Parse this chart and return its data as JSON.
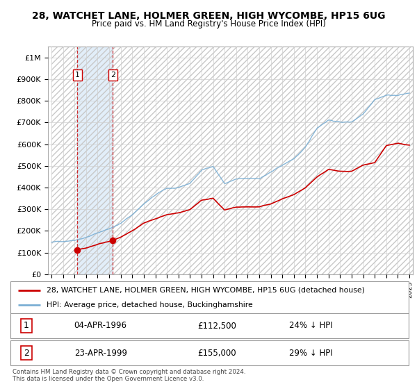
{
  "title": "28, WATCHET LANE, HOLMER GREEN, HIGH WYCOMBE, HP15 6UG",
  "subtitle": "Price paid vs. HM Land Registry's House Price Index (HPI)",
  "footer": "Contains HM Land Registry data © Crown copyright and database right 2024.\nThis data is licensed under the Open Government Licence v3.0.",
  "legend_line1": "28, WATCHET LANE, HOLMER GREEN, HIGH WYCOMBE, HP15 6UG (detached house)",
  "legend_line2": "HPI: Average price, detached house, Buckinghamshire",
  "sale1_label": "1",
  "sale1_date": "04-APR-1996",
  "sale1_price": "£112,500",
  "sale1_hpi": "24% ↓ HPI",
  "sale2_label": "2",
  "sale2_date": "23-APR-1999",
  "sale2_price": "£155,000",
  "sale2_hpi": "29% ↓ HPI",
  "price_color": "#cc0000",
  "hpi_color": "#7bafd4",
  "ylim": [
    0,
    1050000
  ],
  "yticks": [
    0,
    100000,
    200000,
    300000,
    400000,
    500000,
    600000,
    700000,
    800000,
    900000,
    1000000
  ],
  "ytick_labels": [
    "£0",
    "£100K",
    "£200K",
    "£300K",
    "£400K",
    "£500K",
    "£600K",
    "£700K",
    "£800K",
    "£900K",
    "£1M"
  ],
  "sale1_year": 1996.25,
  "sale1_value": 112500,
  "sale2_year": 1999.31,
  "sale2_value": 155000,
  "x_min": 1994,
  "x_max": 2025,
  "hpi_breakpoints": [
    [
      1994,
      148000
    ],
    [
      1995,
      152000
    ],
    [
      1996,
      160000
    ],
    [
      1997,
      175000
    ],
    [
      1998,
      195000
    ],
    [
      1999,
      215000
    ],
    [
      2000,
      240000
    ],
    [
      2001,
      280000
    ],
    [
      2002,
      330000
    ],
    [
      2003,
      370000
    ],
    [
      2004,
      400000
    ],
    [
      2005,
      400000
    ],
    [
      2006,
      420000
    ],
    [
      2007,
      480000
    ],
    [
      2008,
      500000
    ],
    [
      2009,
      420000
    ],
    [
      2010,
      440000
    ],
    [
      2011,
      440000
    ],
    [
      2012,
      440000
    ],
    [
      2013,
      470000
    ],
    [
      2014,
      500000
    ],
    [
      2015,
      530000
    ],
    [
      2016,
      580000
    ],
    [
      2017,
      670000
    ],
    [
      2018,
      710000
    ],
    [
      2019,
      700000
    ],
    [
      2020,
      700000
    ],
    [
      2021,
      740000
    ],
    [
      2022,
      810000
    ],
    [
      2023,
      830000
    ],
    [
      2024,
      830000
    ],
    [
      2025,
      840000
    ]
  ],
  "price_breakpoints_1": [
    [
      1996.25,
      112500
    ],
    [
      1997,
      120000
    ],
    [
      1998,
      138000
    ],
    [
      1998.5,
      145000
    ],
    [
      1999.31,
      155000
    ]
  ],
  "price_breakpoints_2": [
    [
      1999.31,
      155000
    ],
    [
      2000,
      170000
    ],
    [
      2001,
      200000
    ],
    [
      2002,
      235000
    ],
    [
      2003,
      252000
    ],
    [
      2004,
      270000
    ],
    [
      2005,
      280000
    ],
    [
      2006,
      295000
    ],
    [
      2007,
      340000
    ],
    [
      2008,
      350000
    ],
    [
      2009,
      295000
    ],
    [
      2010,
      308000
    ],
    [
      2011,
      310000
    ],
    [
      2012,
      308000
    ],
    [
      2013,
      320000
    ],
    [
      2014,
      345000
    ],
    [
      2015,
      365000
    ],
    [
      2016,
      395000
    ],
    [
      2017,
      445000
    ],
    [
      2018,
      480000
    ],
    [
      2019,
      470000
    ],
    [
      2020,
      470000
    ],
    [
      2021,
      500000
    ],
    [
      2022,
      510000
    ],
    [
      2023,
      590000
    ],
    [
      2024,
      600000
    ],
    [
      2025,
      590000
    ]
  ]
}
